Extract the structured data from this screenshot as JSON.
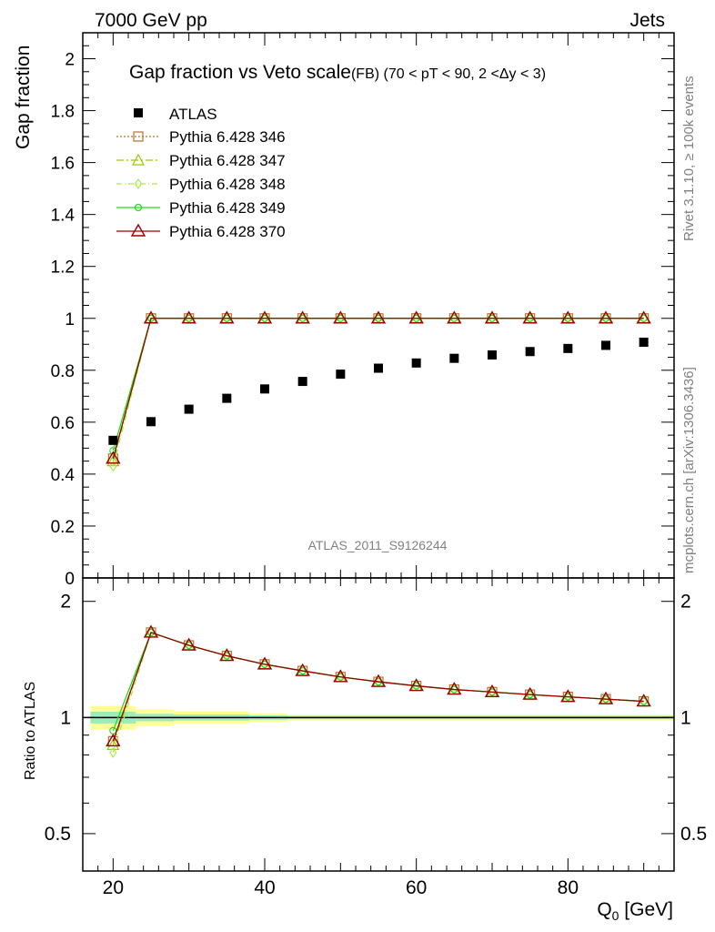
{
  "header": {
    "left": "7000 GeV pp",
    "right": "Jets"
  },
  "side_labels": {
    "rivet": "Rivet 3.1.10, ≥ 100k events",
    "mcplots": "mcplots.cern.ch [arXiv:1306.3436]"
  },
  "watermark": "ATLAS_2011_S9126244",
  "chart_data": {
    "type": "scatter",
    "title_main": "Gap fraction vs Veto scale",
    "title_sub": "(FB) (70 < pT <  90, 2 <Δy < 3)",
    "xlabel": "Q",
    "xlabel_sub": "0",
    "xlabel_unit": " [GeV]",
    "ylabel": "Gap fraction",
    "ratio_ylabel": "Ratio to ATLAS",
    "xlim": [
      16,
      94
    ],
    "ylim": [
      0,
      2.1
    ],
    "ratio_ylim": [
      0.4,
      2.3
    ],
    "ratio_scale": "log",
    "x_ticks": [
      20,
      40,
      60,
      80
    ],
    "y_ticks": [
      0,
      0.2,
      0.4,
      0.6,
      0.8,
      1,
      1.2,
      1.4,
      1.6,
      1.8,
      2
    ],
    "ratio_ticks": [
      0.5,
      1,
      2
    ],
    "x": [
      20,
      25,
      30,
      35,
      40,
      45,
      50,
      55,
      60,
      65,
      70,
      75,
      80,
      85,
      90
    ],
    "data": {
      "name": "ATLAS",
      "color": "#000000",
      "values": [
        0.53,
        0.602,
        0.65,
        0.692,
        0.728,
        0.757,
        0.785,
        0.808,
        0.828,
        0.846,
        0.859,
        0.872,
        0.884,
        0.896,
        0.908
      ],
      "band_edges": [
        17,
        23,
        28,
        38,
        43,
        94
      ],
      "band_inner": [
        0.035,
        0.022,
        0.018,
        0.013,
        0.01
      ],
      "band_outer": [
        0.07,
        0.05,
        0.035,
        0.025,
        0.018
      ]
    },
    "series": [
      {
        "name": "Pythia 6.428 346",
        "color": "#b87333",
        "dash": "2,2",
        "marker": "square",
        "values": [
          0.46,
          1,
          1,
          1,
          1,
          1,
          1,
          1,
          1,
          1,
          1,
          1,
          1,
          1,
          1
        ]
      },
      {
        "name": "Pythia 6.428 347",
        "color": "#99cc00",
        "dash": "8,3,2,3",
        "marker": "triangle",
        "values": [
          0.45,
          1,
          1,
          1,
          1,
          1,
          1,
          1,
          1,
          1,
          1,
          1,
          1,
          1,
          1
        ]
      },
      {
        "name": "Pythia 6.428 348",
        "color": "#aaee44",
        "dash": "6,3,1,3",
        "marker": "diamond",
        "values": [
          0.43,
          1,
          1,
          1,
          1,
          1,
          1,
          1,
          1,
          1,
          1,
          1,
          1,
          1,
          1
        ]
      },
      {
        "name": "Pythia 6.428 349",
        "color": "#22dd22",
        "dash": "",
        "marker": "circle",
        "values": [
          0.49,
          1,
          1,
          1,
          1,
          1,
          1,
          1,
          1,
          1,
          1,
          1,
          1,
          1,
          1
        ]
      },
      {
        "name": "Pythia 6.428 370",
        "color": "#990000",
        "dash": "",
        "marker": "triangle-open",
        "values": [
          0.46,
          1,
          1,
          1,
          1,
          1,
          1,
          1,
          1,
          1,
          1,
          1,
          1,
          1,
          1
        ]
      }
    ]
  }
}
